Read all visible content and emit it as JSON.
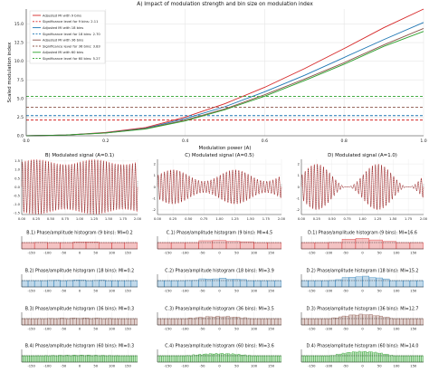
{
  "chart_data": [
    {
      "panel": "A",
      "type": "line",
      "title": "A) Impact of modulation strength and bin size on modulation index",
      "xlabel": "Modulation power (A)",
      "ylabel": "Scaled modulation index",
      "xlim": [
        0.0,
        1.0
      ],
      "ylim": [
        0.0,
        17.0
      ],
      "xticks": [
        "0.0",
        "0.2",
        "0.4",
        "0.6",
        "0.8",
        "1.0"
      ],
      "yticks": [
        "0.0",
        "2.5",
        "5.0",
        "7.5",
        "10.0",
        "12.5",
        "15.0"
      ],
      "grid": true,
      "legend_position": "top-left",
      "x": [
        0.0,
        0.1,
        0.2,
        0.3,
        0.4,
        0.5,
        0.6,
        0.7,
        0.8,
        0.9,
        1.0
      ],
      "series": [
        {
          "name": "Adjusted MI with 9 bins",
          "color": "#d62728",
          "style": "solid",
          "values": [
            0.0,
            0.1,
            0.45,
            1.1,
            2.5,
            4.3,
            6.5,
            9.0,
            11.7,
            14.5,
            17.0
          ]
        },
        {
          "name": "Significance level for 9 bins: 2.11",
          "color": "#d62728",
          "style": "dashed",
          "values": [
            2.11,
            2.11,
            2.11,
            2.11,
            2.11,
            2.11,
            2.11,
            2.11,
            2.11,
            2.11,
            2.11
          ]
        },
        {
          "name": "Adjusted MI with 18 bins",
          "color": "#1f77b4",
          "style": "solid",
          "values": [
            0.0,
            0.1,
            0.4,
            1.0,
            2.3,
            3.9,
            5.9,
            8.1,
            10.5,
            12.9,
            15.2
          ]
        },
        {
          "name": "Significance level for 18 bins: 2.70",
          "color": "#1f77b4",
          "style": "dashed",
          "values": [
            2.7,
            2.7,
            2.7,
            2.7,
            2.7,
            2.7,
            2.7,
            2.7,
            2.7,
            2.7,
            2.7
          ]
        },
        {
          "name": "Adjusted MI with 36 bins",
          "color": "#8c564b",
          "style": "solid",
          "values": [
            0.0,
            0.1,
            0.38,
            0.95,
            2.1,
            3.6,
            5.5,
            7.6,
            9.8,
            12.2,
            14.4
          ]
        },
        {
          "name": "Significance level for 36 bins: 3.83",
          "color": "#8c564b",
          "style": "dashed",
          "values": [
            3.83,
            3.83,
            3.83,
            3.83,
            3.83,
            3.83,
            3.83,
            3.83,
            3.83,
            3.83,
            3.83
          ]
        },
        {
          "name": "Adjusted MI with 60 bins",
          "color": "#2ca02c",
          "style": "solid",
          "values": [
            0.0,
            0.1,
            0.37,
            0.9,
            2.0,
            3.5,
            5.3,
            7.4,
            9.6,
            12.0,
            14.0
          ]
        },
        {
          "name": "Significance level for 60 bins: 5.27",
          "color": "#2ca02c",
          "style": "dashed",
          "values": [
            5.27,
            5.27,
            5.27,
            5.27,
            5.27,
            5.27,
            5.27,
            5.27,
            5.27,
            5.27,
            5.27
          ]
        }
      ]
    },
    {
      "panel": "B",
      "type": "line",
      "title": "B) Modulated signal (A=0.1)",
      "amplitude": 0.1,
      "xlim": [
        0.0,
        2.0
      ],
      "xticks": [
        "0.00",
        "0.25",
        "0.50",
        "0.75",
        "1.00",
        "1.25",
        "1.50",
        "1.75",
        "2.00"
      ],
      "ylim": [
        -1.6,
        1.6
      ],
      "yticks": [
        "-1.5",
        "-1.0",
        "-0.5",
        "0.0",
        "0.5",
        "1.0",
        "1.5"
      ],
      "series": [
        {
          "name": "",
          "color": "#d62728"
        },
        {
          "name": "",
          "color": "#000000",
          "style": "dashed"
        }
      ]
    },
    {
      "panel": "C",
      "type": "line",
      "title": "C) Modulated signal (A=0.5)",
      "amplitude": 0.5,
      "xlim": [
        0.0,
        2.0
      ],
      "xticks": [
        "0.00",
        "0.25",
        "0.50",
        "0.75",
        "1.00",
        "1.25",
        "1.50",
        "1.75",
        "2.00"
      ],
      "ylim": [
        -2.4,
        2.4
      ],
      "yticks": [
        "-2",
        "-1",
        "0",
        "1",
        "2"
      ]
    },
    {
      "panel": "D",
      "type": "line",
      "title": "D) Modulated signal (A=1.0)",
      "amplitude": 1.0,
      "xlim": [
        0.0,
        2.0
      ],
      "xticks": [
        "0.00",
        "0.25",
        "0.50",
        "0.75",
        "1.00",
        "1.25",
        "1.50",
        "1.75",
        "2.00"
      ],
      "ylim": [
        -2.4,
        2.4
      ],
      "yticks": [
        "-2",
        "-1",
        "0",
        "1",
        "2"
      ]
    },
    {
      "panel": "B.1",
      "type": "bar",
      "title": "B.1) Phase/amplitude histogram (9 bins): MI=0.2",
      "bins": 9,
      "color": "#d62728",
      "amplitude": 0.1,
      "xticks": [
        "-150",
        "-100",
        "-50",
        "0",
        "50",
        "100",
        "150"
      ]
    },
    {
      "panel": "C.1",
      "type": "bar",
      "title": "C.1) Phase/amplitude histogram (9 bins): MI=4.5",
      "bins": 9,
      "color": "#d62728",
      "amplitude": 0.5,
      "xticks": [
        "-150",
        "-100",
        "-50",
        "0",
        "50",
        "100",
        "150"
      ]
    },
    {
      "panel": "D.1",
      "type": "bar",
      "title": "D.1) Phase/amplitude histogram (9 bins): MI=16.6",
      "bins": 9,
      "color": "#d62728",
      "amplitude": 1.0,
      "xticks": [
        "-150",
        "-100",
        "-50",
        "0",
        "50",
        "100",
        "150"
      ]
    },
    {
      "panel": "B.2",
      "type": "bar",
      "title": "B.2) Phase/amplitude histogram (18 bins): MI=0.2",
      "bins": 18,
      "color": "#1f77b4",
      "amplitude": 0.1,
      "xticks": [
        "-150",
        "-100",
        "-50",
        "0",
        "50",
        "100",
        "150"
      ]
    },
    {
      "panel": "C.2",
      "type": "bar",
      "title": "C.2) Phase/amplitude histogram (18 bins): MI=3.9",
      "bins": 18,
      "color": "#1f77b4",
      "amplitude": 0.5,
      "xticks": [
        "-150",
        "-100",
        "-50",
        "0",
        "50",
        "100",
        "150"
      ]
    },
    {
      "panel": "D.2",
      "type": "bar",
      "title": "D.2) Phase/amplitude histogram (18 bins): MI=15.2",
      "bins": 18,
      "color": "#1f77b4",
      "amplitude": 1.0,
      "xticks": [
        "-150",
        "-100",
        "-50",
        "0",
        "50",
        "100",
        "150"
      ]
    },
    {
      "panel": "B.3",
      "type": "bar",
      "title": "B.3) Phase/amplitude histogram (36 bins): MI=0.3",
      "bins": 36,
      "color": "#8c564b",
      "amplitude": 0.1,
      "xticks": [
        "-150",
        "-100",
        "-50",
        "0",
        "50",
        "100",
        "150"
      ]
    },
    {
      "panel": "C.3",
      "type": "bar",
      "title": "C.3) Phase/amplitude histogram (36 bins): MI=3.5",
      "bins": 36,
      "color": "#8c564b",
      "amplitude": 0.5,
      "xticks": [
        "-150",
        "-100",
        "-50",
        "0",
        "50",
        "100",
        "150"
      ]
    },
    {
      "panel": "D.3",
      "type": "bar",
      "title": "D.3) Phase/amplitude histogram (36 bins): MI=12.7",
      "bins": 36,
      "color": "#8c564b",
      "amplitude": 1.0,
      "xticks": [
        "-150",
        "-100",
        "-50",
        "0",
        "50",
        "100",
        "150"
      ]
    },
    {
      "panel": "B.4",
      "type": "bar",
      "title": "B.4) Phase/amplitude histogram (60 bins): MI=0.3",
      "bins": 60,
      "color": "#2ca02c",
      "amplitude": 0.1,
      "xticks": [
        "-150",
        "-100",
        "-50",
        "0",
        "50",
        "100",
        "150"
      ]
    },
    {
      "panel": "C.4",
      "type": "bar",
      "title": "C.4) Phase/amplitude histogram (60 bins): MI=3.6",
      "bins": 60,
      "color": "#2ca02c",
      "amplitude": 0.5,
      "xticks": [
        "-150",
        "-100",
        "-50",
        "0",
        "50",
        "100",
        "150"
      ]
    },
    {
      "panel": "D.4",
      "type": "bar",
      "title": "D.4) Phase/amplitude histogram (60 bins): MI=14.0",
      "bins": 60,
      "color": "#2ca02c",
      "amplitude": 1.0,
      "xticks": [
        "-150",
        "-100",
        "-50",
        "0",
        "50",
        "100",
        "150"
      ]
    }
  ]
}
